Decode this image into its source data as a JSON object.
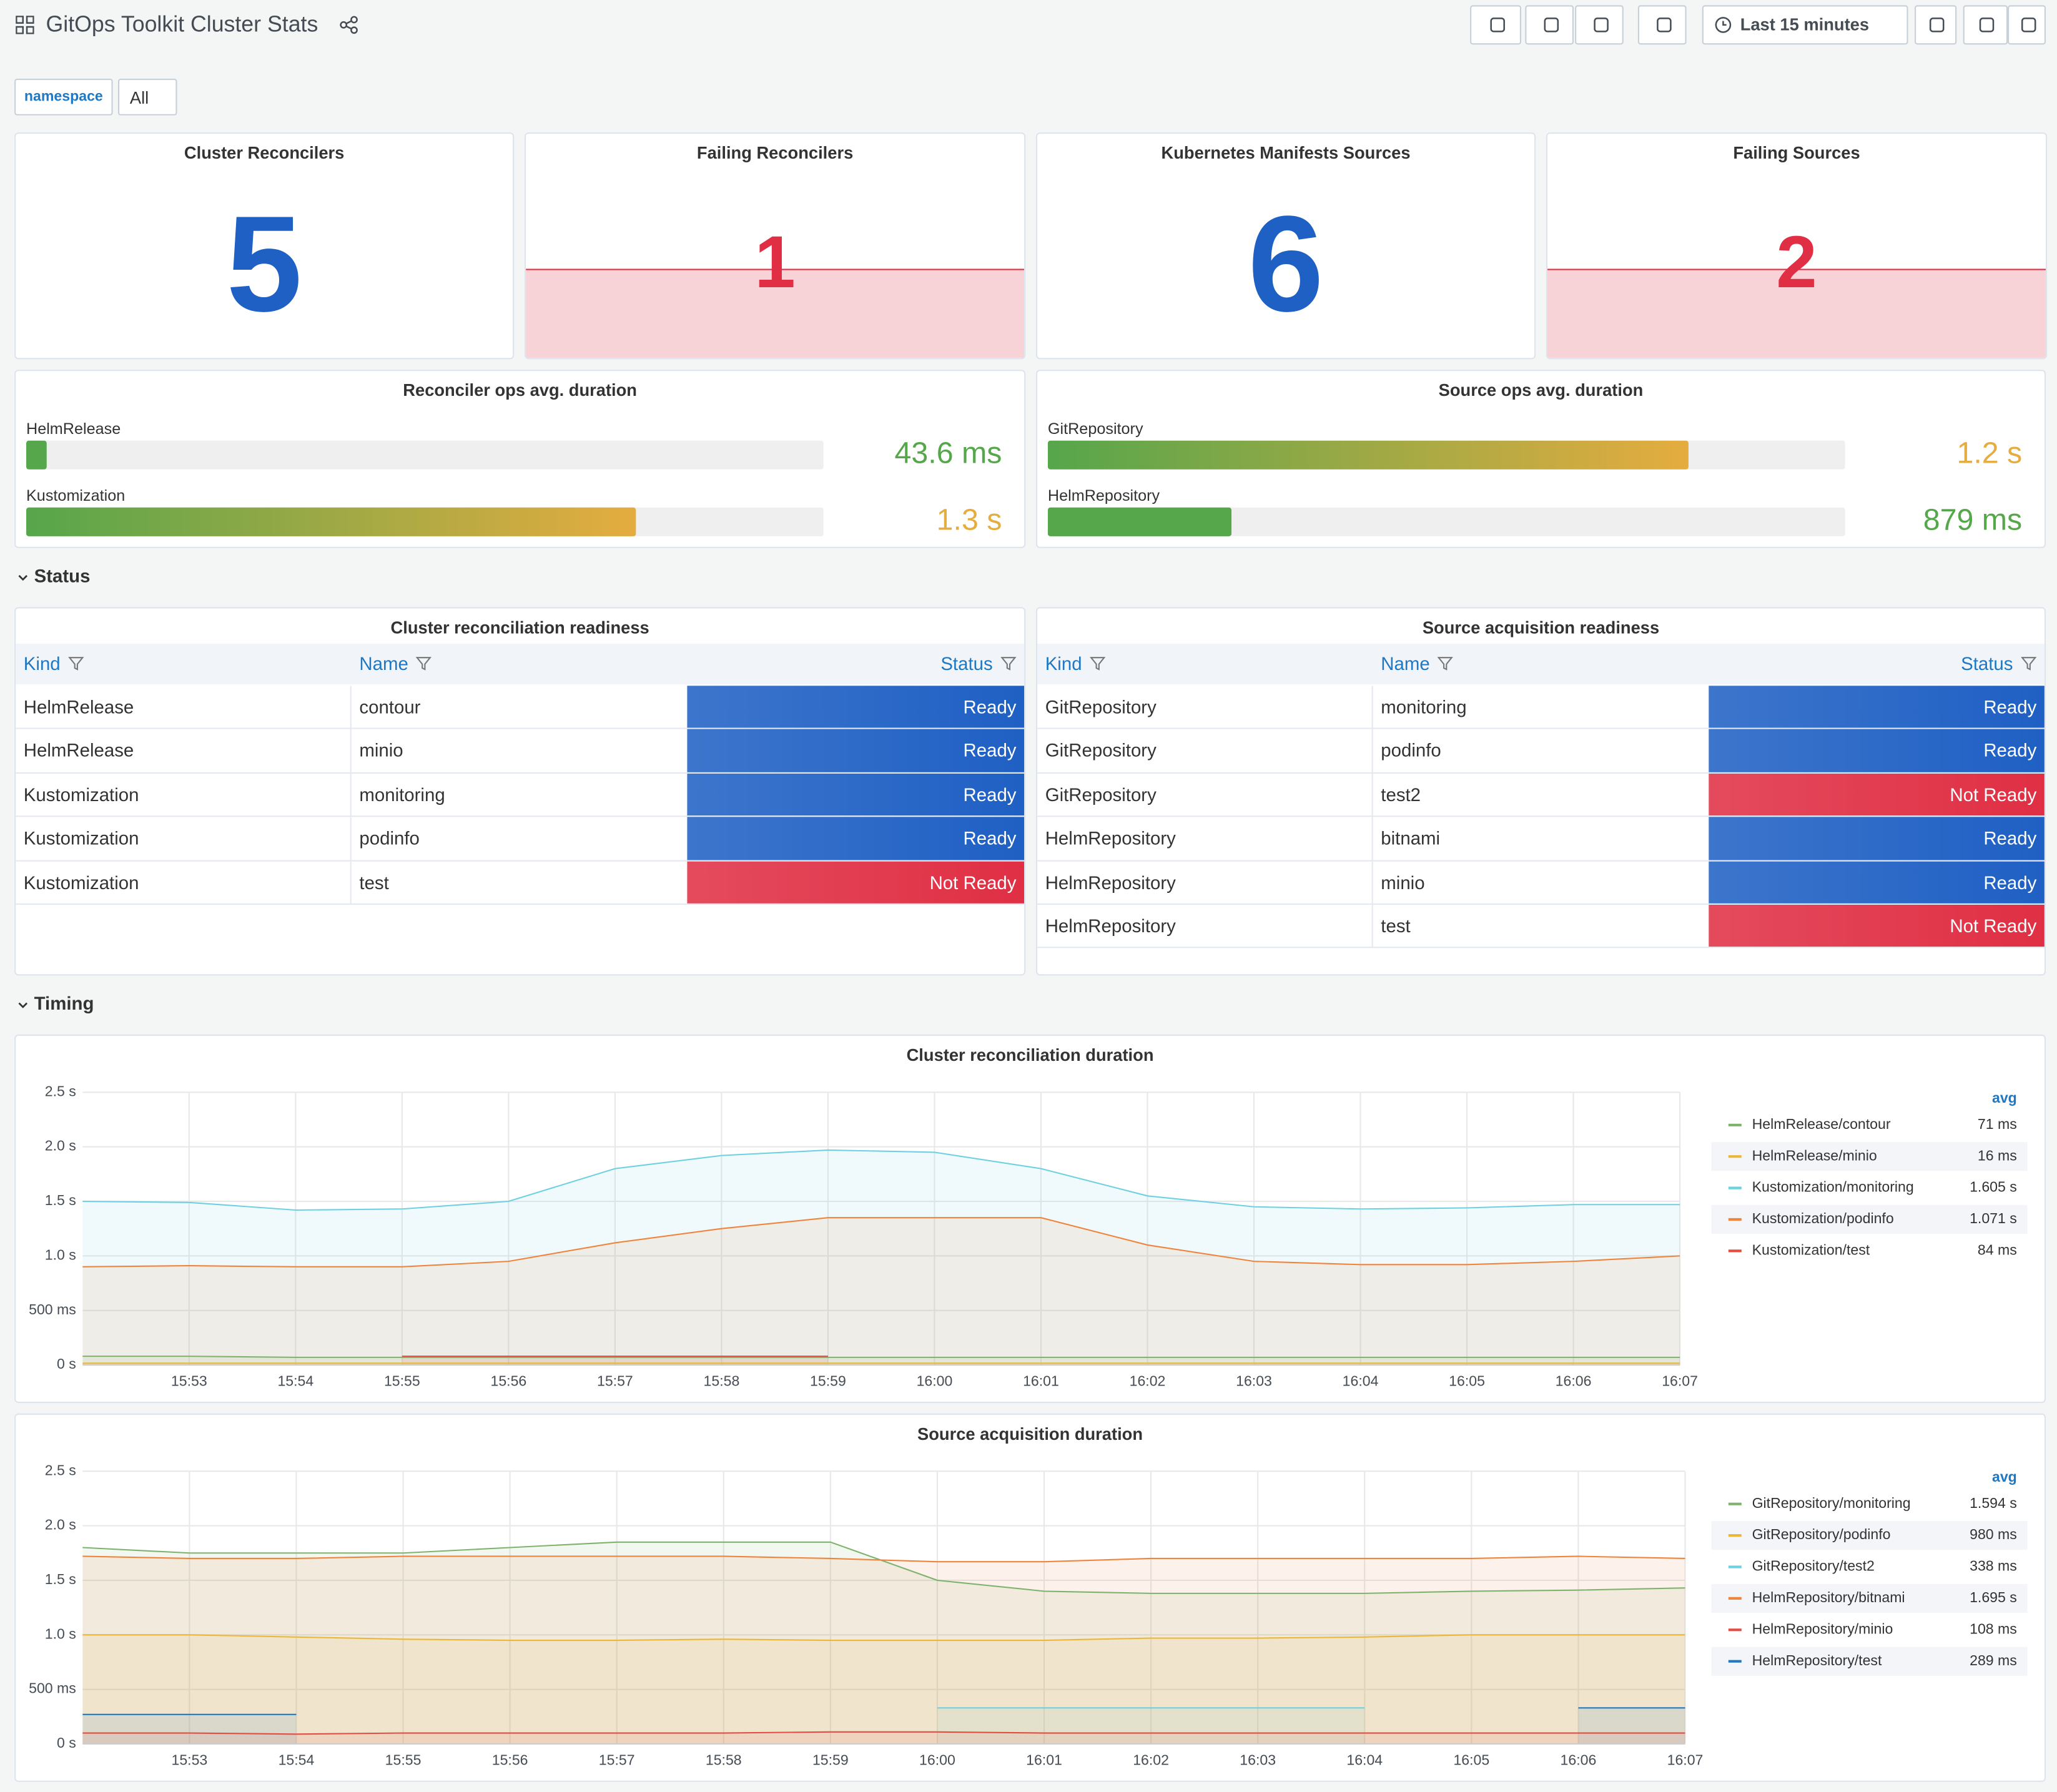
{
  "header": {
    "title": "GitOps Toolkit Cluster Stats",
    "time_range": "Last 15 minutes"
  },
  "variables": {
    "label": "namespace",
    "value": "All"
  },
  "stats": [
    {
      "title": "Cluster Reconcilers",
      "value": 5,
      "color": "#1f60c4",
      "area": false
    },
    {
      "title": "Failing Reconcilers",
      "value": 1,
      "color": "#e02f44",
      "area": true
    },
    {
      "title": "Kubernetes Manifests Sources",
      "value": 6,
      "color": "#1f60c4",
      "area": false
    },
    {
      "title": "Failing Sources",
      "value": 2,
      "color": "#e02f44",
      "area": true
    }
  ],
  "gauges": [
    {
      "title": "Reconciler ops avg. duration",
      "xlim": [
        0,
        1.7
      ],
      "bars": [
        {
          "name": "HelmRelease",
          "value": 0.0436,
          "value_label": "43.6 ms",
          "color": "#56a64b"
        },
        {
          "name": "Kustomization",
          "value": 1.3,
          "value_label": "1.3 s",
          "color": "#e5ac3f"
        }
      ]
    },
    {
      "title": "Source ops avg. duration",
      "xlim": [
        0.75,
        1.31
      ],
      "bars": [
        {
          "name": "GitRepository",
          "value": 1.2,
          "value_label": "1.2 s",
          "color": "#e5ac3f"
        },
        {
          "name": "HelmRepository",
          "value": 0.879,
          "value_label": "879 ms",
          "color": "#56a64b"
        }
      ]
    }
  ],
  "sections": [
    "Status",
    "Timing"
  ],
  "tables": [
    {
      "title": "Cluster reconciliation readiness",
      "columns": [
        "Kind",
        "Name",
        "Status"
      ],
      "rows": [
        [
          "HelmRelease",
          "contour",
          "Ready"
        ],
        [
          "HelmRelease",
          "minio",
          "Ready"
        ],
        [
          "Kustomization",
          "monitoring",
          "Ready"
        ],
        [
          "Kustomization",
          "podinfo",
          "Ready"
        ],
        [
          "Kustomization",
          "test",
          "Not Ready"
        ]
      ],
      "status_colors": [
        "#1f60c4",
        "#1f60c4",
        "#1f60c4",
        "#1f60c4",
        "#e02f44"
      ]
    },
    {
      "title": "Source acquisition readiness",
      "columns": [
        "Kind",
        "Name",
        "Status"
      ],
      "rows": [
        [
          "GitRepository",
          "monitoring",
          "Ready"
        ],
        [
          "GitRepository",
          "podinfo",
          "Ready"
        ],
        [
          "GitRepository",
          "test2",
          "Not Ready"
        ],
        [
          "HelmRepository",
          "bitnami",
          "Ready"
        ],
        [
          "HelmRepository",
          "minio",
          "Ready"
        ],
        [
          "HelmRepository",
          "test",
          "Not Ready"
        ]
      ],
      "status_colors": [
        "#1f60c4",
        "#1f60c4",
        "#e02f44",
        "#1f60c4",
        "#1f60c4",
        "#e02f44"
      ]
    }
  ],
  "charts": [
    {
      "type": "line",
      "title": "Cluster reconciliation duration",
      "legend_header": "avg",
      "x": [
        "15:52",
        "15:53",
        "15:54",
        "15:55",
        "15:56",
        "15:57",
        "15:58",
        "15:59",
        "16:00",
        "16:01",
        "16:02",
        "16:03",
        "16:04",
        "16:05",
        "16:06",
        "16:07"
      ],
      "xlim": [
        "15:52",
        "16:07"
      ],
      "xticks": [
        "15:53",
        "15:54",
        "15:55",
        "15:56",
        "15:57",
        "15:58",
        "15:59",
        "16:00",
        "16:01",
        "16:02",
        "16:03",
        "16:04",
        "16:05",
        "16:06",
        "16:07"
      ],
      "ylim": [
        0,
        2.5
      ],
      "yticks": [
        {
          "value": 0,
          "label": "0 s"
        },
        {
          "value": 0.5,
          "label": "500 ms"
        },
        {
          "value": 1,
          "label": "1.0 s"
        },
        {
          "value": 1.5,
          "label": "1.5 s"
        },
        {
          "value": 2,
          "label": "2.0 s"
        },
        {
          "value": 2.5,
          "label": "2.5 s"
        }
      ],
      "series": [
        {
          "name": "HelmRelease/contour",
          "color": "#7eb26d",
          "avg": "71 ms",
          "values": [
            0.08,
            0.08,
            0.07,
            0.07,
            0.07,
            0.07,
            0.07,
            0.07,
            0.07,
            0.07,
            0.07,
            0.07,
            0.07,
            0.07,
            0.07,
            0.07
          ]
        },
        {
          "name": "HelmRelease/minio",
          "color": "#eab839",
          "avg": "16 ms",
          "values": [
            0.016,
            0.016,
            0.016,
            0.016,
            0.016,
            0.016,
            0.016,
            0.016,
            0.016,
            0.016,
            0.016,
            0.016,
            0.016,
            0.016,
            0.016,
            0.016
          ]
        },
        {
          "name": "Kustomization/monitoring",
          "color": "#6ed0e0",
          "avg": "1.605 s",
          "values": [
            1.5,
            1.49,
            1.42,
            1.43,
            1.5,
            1.8,
            1.92,
            1.97,
            1.95,
            1.8,
            1.55,
            1.45,
            1.43,
            1.44,
            1.47,
            1.47
          ]
        },
        {
          "name": "Kustomization/podinfo",
          "color": "#ef843c",
          "avg": "1.071 s",
          "values": [
            0.9,
            0.91,
            0.9,
            0.9,
            0.95,
            1.12,
            1.25,
            1.35,
            1.35,
            1.35,
            1.1,
            0.95,
            0.92,
            0.92,
            0.95,
            1.0
          ]
        },
        {
          "name": "Kustomization/test",
          "color": "#e24d42",
          "avg": "84 ms",
          "values": [
            null,
            null,
            null,
            0.08,
            0.08,
            0.08,
            0.08,
            0.08,
            null,
            null,
            null,
            null,
            null,
            null,
            null,
            null
          ]
        }
      ]
    },
    {
      "type": "line",
      "title": "Source acquisition duration",
      "legend_header": "avg",
      "x": [
        "15:52",
        "15:53",
        "15:54",
        "15:55",
        "15:56",
        "15:57",
        "15:58",
        "15:59",
        "16:00",
        "16:01",
        "16:02",
        "16:03",
        "16:04",
        "16:05",
        "16:06",
        "16:07"
      ],
      "xlim": [
        "15:52",
        "16:07"
      ],
      "xticks": [
        "15:53",
        "15:54",
        "15:55",
        "15:56",
        "15:57",
        "15:58",
        "15:59",
        "16:00",
        "16:01",
        "16:02",
        "16:03",
        "16:04",
        "16:05",
        "16:06",
        "16:07"
      ],
      "ylim": [
        0,
        2.5
      ],
      "yticks": [
        {
          "value": 0,
          "label": "0 s"
        },
        {
          "value": 0.5,
          "label": "500 ms"
        },
        {
          "value": 1,
          "label": "1.0 s"
        },
        {
          "value": 1.5,
          "label": "1.5 s"
        },
        {
          "value": 2,
          "label": "2.0 s"
        },
        {
          "value": 2.5,
          "label": "2.5 s"
        }
      ],
      "series": [
        {
          "name": "GitRepository/monitoring",
          "color": "#7eb26d",
          "avg": "1.594 s",
          "values": [
            1.8,
            1.75,
            1.75,
            1.75,
            1.8,
            1.85,
            1.85,
            1.85,
            1.5,
            1.4,
            1.38,
            1.38,
            1.38,
            1.4,
            1.41,
            1.43
          ]
        },
        {
          "name": "GitRepository/podinfo",
          "color": "#eab839",
          "avg": "980 ms",
          "values": [
            1.0,
            1.0,
            0.98,
            0.96,
            0.95,
            0.95,
            0.96,
            0.95,
            0.95,
            0.95,
            0.97,
            0.97,
            0.98,
            1.0,
            1.0,
            1.0
          ]
        },
        {
          "name": "GitRepository/test2",
          "color": "#6ed0e0",
          "avg": "338 ms",
          "values": [
            null,
            null,
            null,
            null,
            null,
            null,
            null,
            null,
            0.33,
            0.33,
            0.33,
            0.33,
            0.33,
            null,
            null,
            null
          ]
        },
        {
          "name": "HelmRepository/bitnami",
          "color": "#ef843c",
          "avg": "1.695 s",
          "values": [
            1.72,
            1.7,
            1.7,
            1.72,
            1.72,
            1.72,
            1.72,
            1.7,
            1.67,
            1.67,
            1.7,
            1.7,
            1.7,
            1.7,
            1.72,
            1.7
          ]
        },
        {
          "name": "HelmRepository/minio",
          "color": "#e24d42",
          "avg": "108 ms",
          "values": [
            0.1,
            0.1,
            0.09,
            0.1,
            0.1,
            0.1,
            0.1,
            0.11,
            0.11,
            0.1,
            0.1,
            0.1,
            0.1,
            0.1,
            0.1,
            0.1
          ]
        },
        {
          "name": "HelmRepository/test",
          "color": "#1f78c1",
          "avg": "289 ms",
          "values": [
            0.27,
            0.27,
            0.27,
            null,
            null,
            null,
            null,
            null,
            null,
            null,
            null,
            null,
            null,
            null,
            0.33,
            0.33
          ]
        }
      ]
    }
  ]
}
